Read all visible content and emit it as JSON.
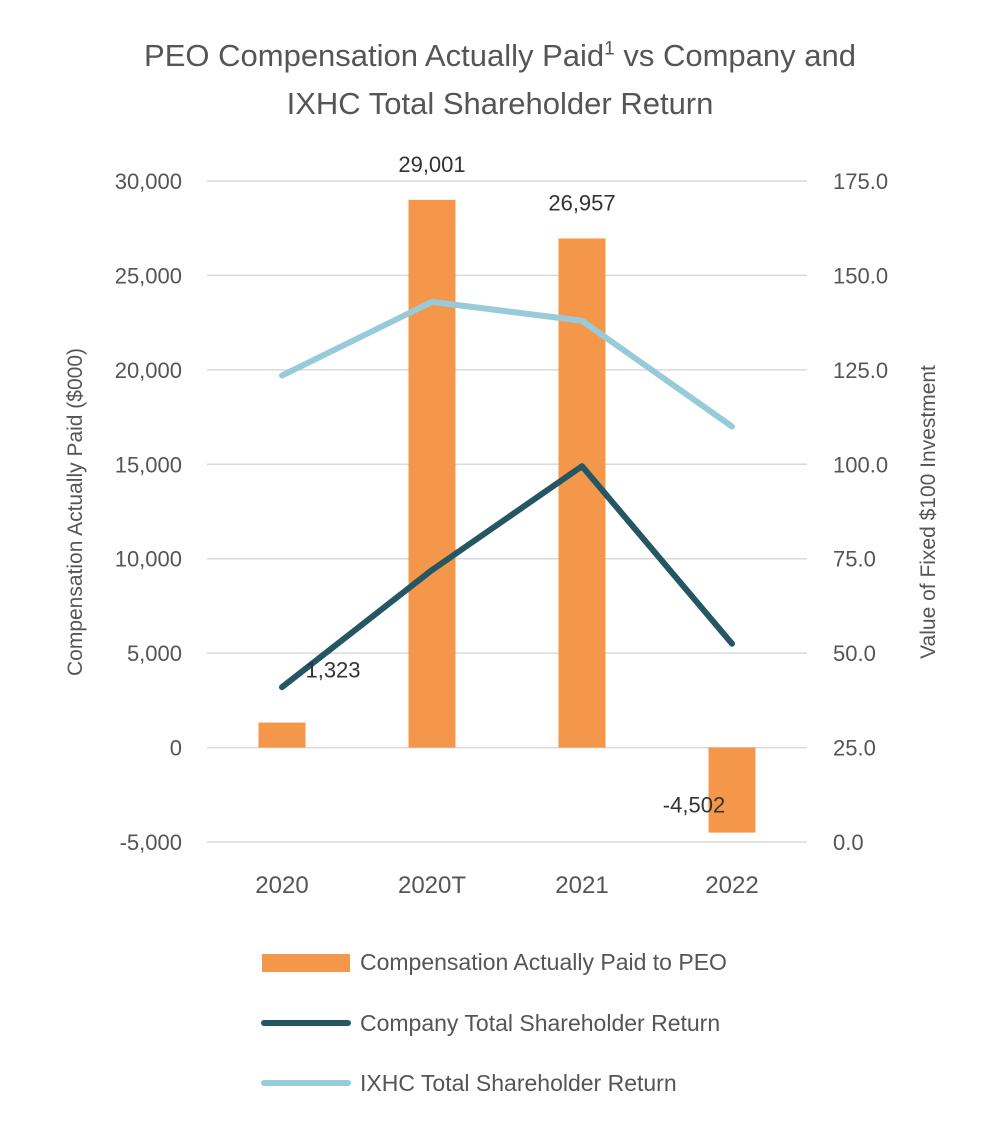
{
  "chart_title": {
    "line1": "PEO Compensation Actually Paid",
    "superscript": "1",
    "line1_suffix": " vs Company and",
    "line2": "IXHC Total Shareholder Return"
  },
  "chart_data": {
    "type": "bar+line",
    "categories": [
      "2020",
      "2020T",
      "2021",
      "2022"
    ],
    "series": [
      {
        "name": "Compensation Actually Paid to PEO",
        "kind": "bar",
        "axis": "left",
        "color": "#F4974A",
        "values": [
          1323,
          29001,
          26957,
          -4502
        ],
        "labels": [
          "1,323",
          "29,001",
          "26,957",
          "-4,502"
        ]
      },
      {
        "name": "Company Total Shareholder Return",
        "kind": "line",
        "axis": "right",
        "color": "#245663",
        "values": [
          41,
          72,
          99.5,
          52.5
        ]
      },
      {
        "name": "IXHC Total Shareholder Return",
        "kind": "line",
        "axis": "right",
        "color": "#97CBDA",
        "values": [
          123.5,
          143,
          138,
          110
        ]
      }
    ],
    "y_left": {
      "label": "Compensation Actually Paid ($000)",
      "min": -5000,
      "max": 30000,
      "ticks": [
        30000,
        25000,
        20000,
        15000,
        10000,
        5000,
        0,
        -5000
      ],
      "tick_labels": [
        "30,000",
        "25,000",
        "20,000",
        "15,000",
        "10,000",
        "5,000",
        "0",
        "-5,000"
      ]
    },
    "y_right": {
      "label": "Value of Fixed $100 Investment",
      "min": 0,
      "max": 175,
      "ticks": [
        175,
        150,
        125,
        100,
        75,
        50,
        25,
        0
      ],
      "tick_labels": [
        "175.0",
        "150.0",
        "125.0",
        "100.0",
        "75.0",
        "50.0",
        "25.0",
        "0.0"
      ]
    },
    "grid": true,
    "legend_position": "bottom"
  }
}
